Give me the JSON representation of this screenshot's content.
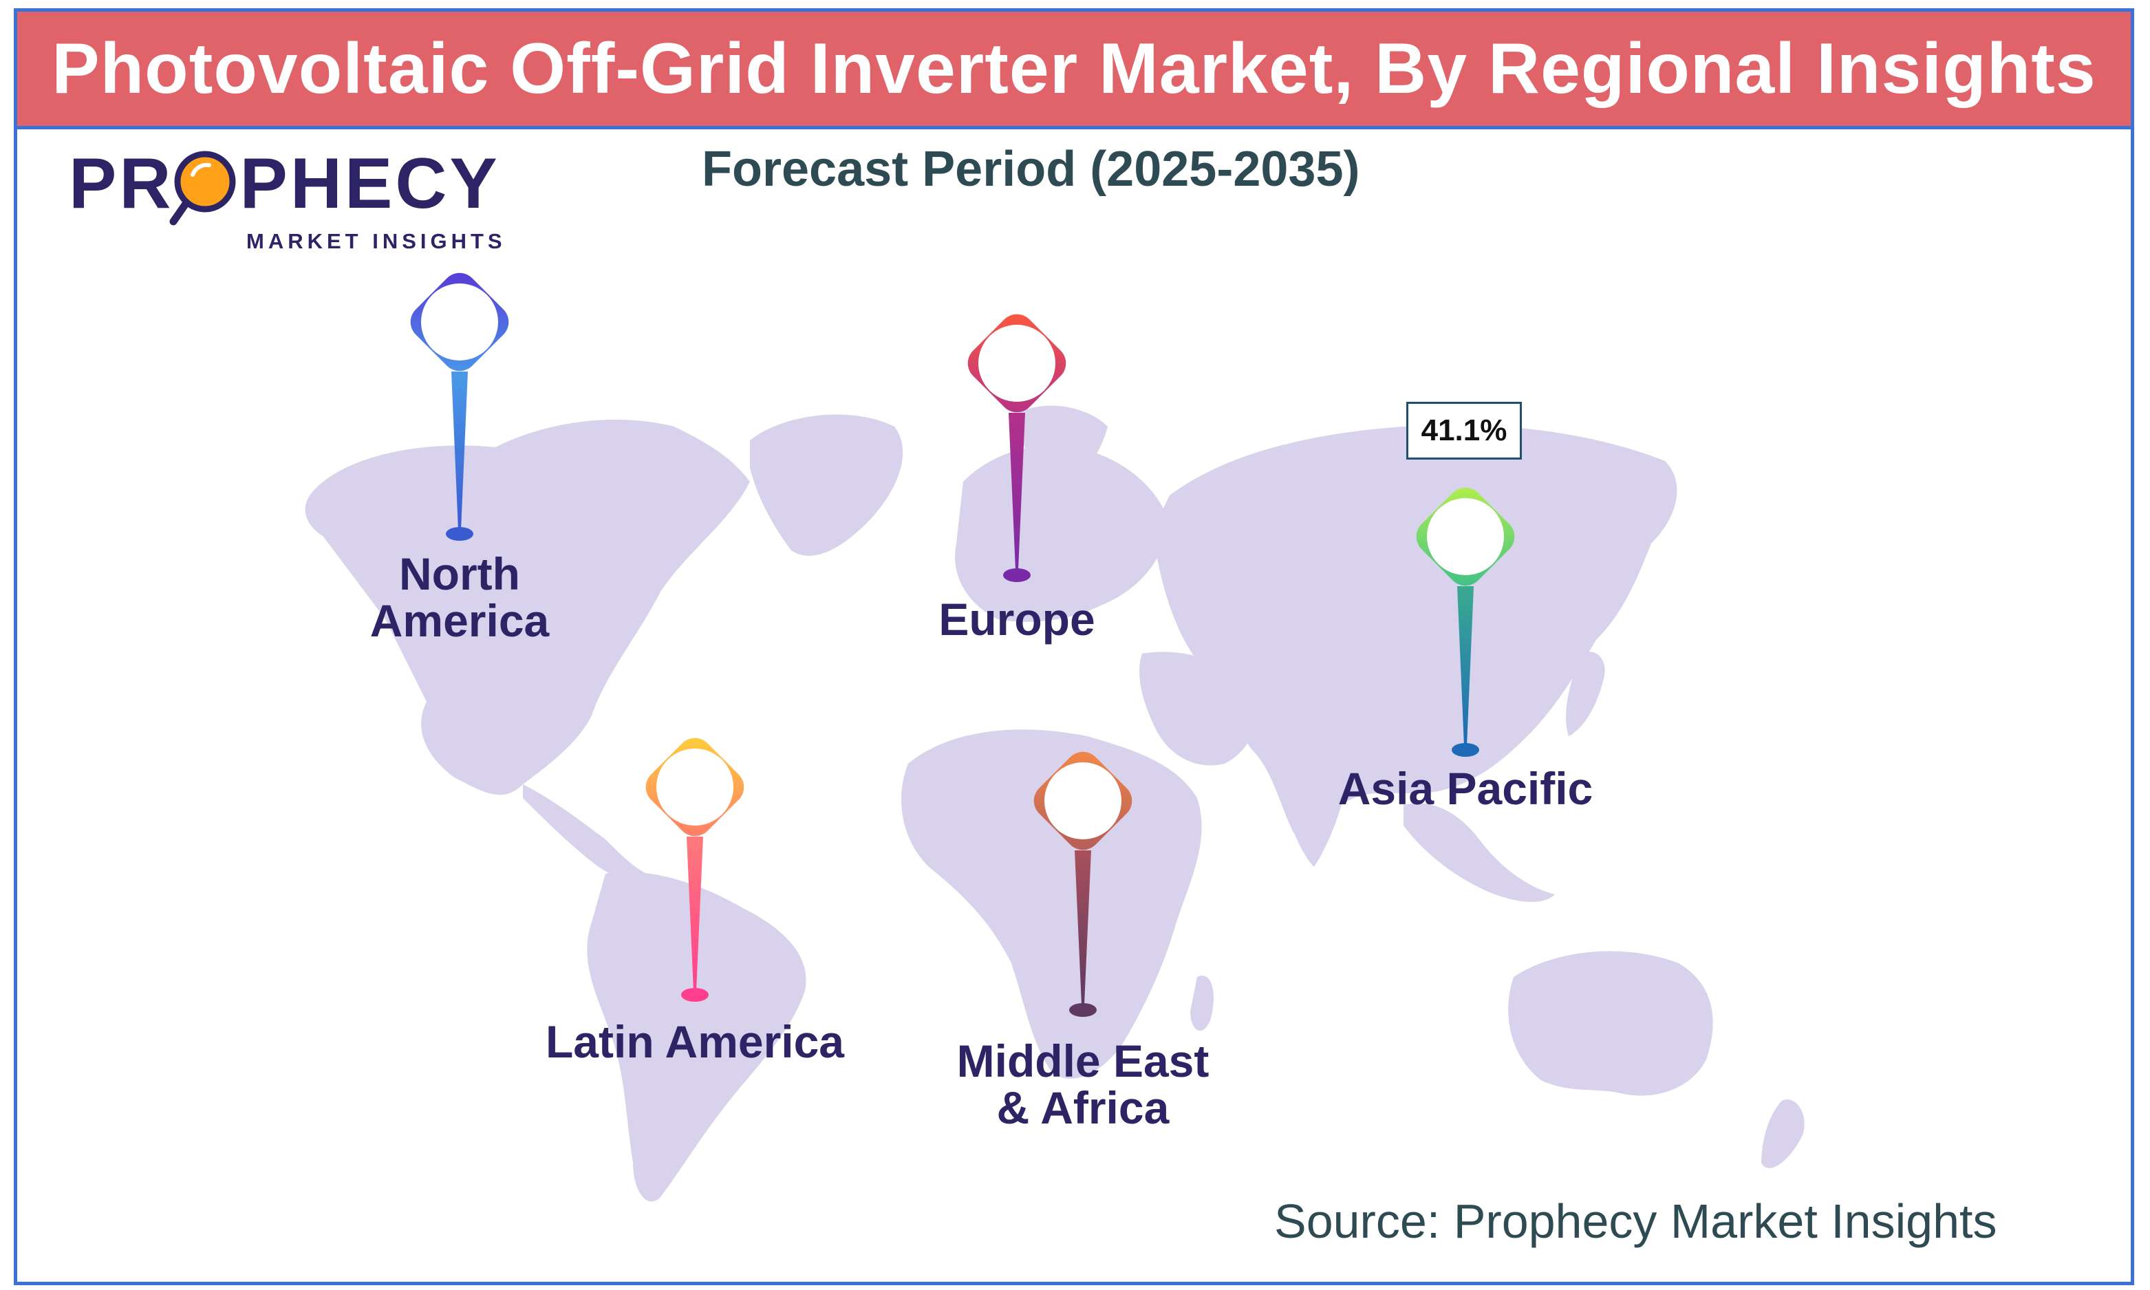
{
  "title": "Photovoltaic Off-Grid Inverter Market, By Regional Insights",
  "subtitle": "Forecast Period (2025-2035)",
  "logo": {
    "brand_prefix": "PR",
    "brand_suffix": "PHECY",
    "tagline": "MARKET INSIGHTS"
  },
  "regions": [
    {
      "label_line1": "North",
      "label_line2": "America",
      "pin_colors": [
        "#5a36d6",
        "#4a8fe8"
      ]
    },
    {
      "label_line1": "Europe",
      "label_line2": "",
      "pin_colors": [
        "#e5474f",
        "#8b2fa3"
      ]
    },
    {
      "label_line1": "Latin America",
      "label_line2": "",
      "pin_colors": [
        "#ffc83a",
        "#ff4f8e"
      ]
    },
    {
      "label_line1": "Middle East",
      "label_line2": "& Africa",
      "pin_colors": [
        "#f2884a",
        "#6e3a6a"
      ]
    },
    {
      "label_line1": "Asia Pacific",
      "label_line2": "",
      "pin_colors": [
        "#a8f04a",
        "#1f74b8"
      ]
    }
  ],
  "highlight": {
    "region": "Asia Pacific",
    "value": "41.1%"
  },
  "source": "Source: Prophecy Market Insights",
  "colors": {
    "title_bar": "#e0636a",
    "border": "#3a72d8",
    "map_land": "#d9d2ec",
    "label": "#2d2466"
  }
}
